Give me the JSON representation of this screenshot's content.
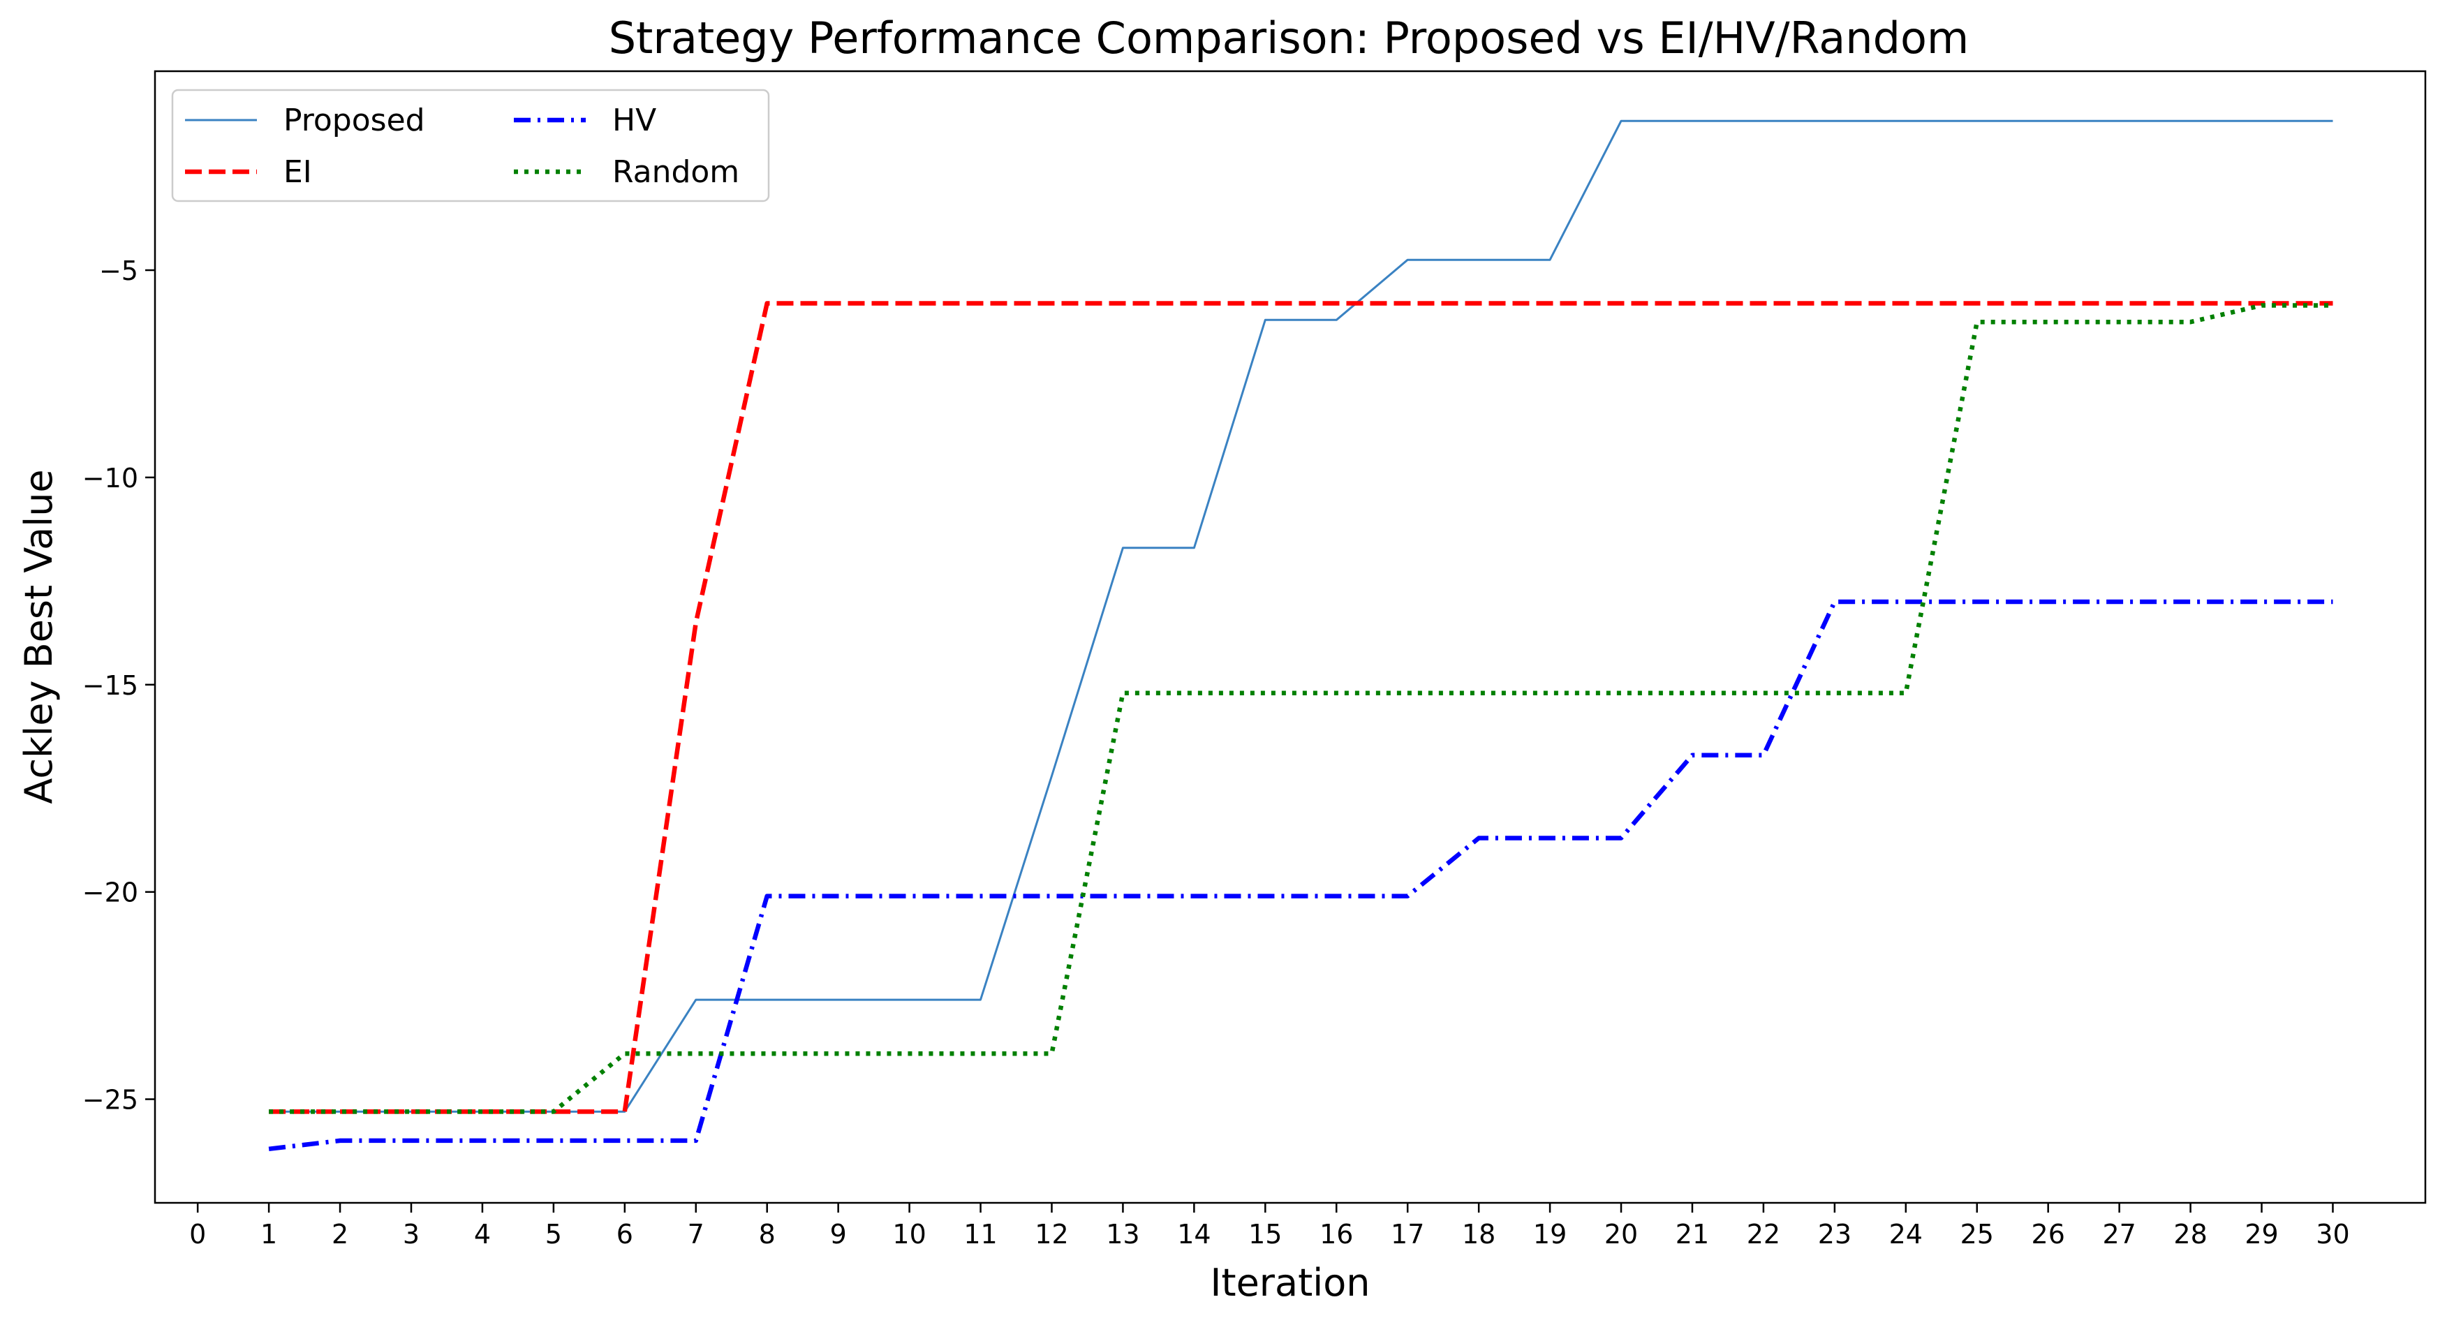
{
  "chart_data": {
    "type": "line",
    "title": "Strategy Performance Comparison: Proposed vs EI/HV/Random",
    "xlabel": "Iteration",
    "ylabel": "Ackley Best Value",
    "xlim": [
      -0.6,
      31.3
    ],
    "ylim": [
      -27.5,
      -0.2
    ],
    "x_ticks": [
      0,
      1,
      2,
      3,
      4,
      5,
      6,
      7,
      8,
      9,
      10,
      11,
      12,
      13,
      14,
      15,
      16,
      17,
      18,
      19,
      20,
      21,
      22,
      23,
      24,
      25,
      26,
      27,
      28,
      29,
      30
    ],
    "y_ticks": [
      -25,
      -20,
      -15,
      -10,
      -5
    ],
    "y_tick_labels": [
      "−25",
      "−20",
      "−15",
      "−10",
      "−5"
    ],
    "grid": false,
    "legend_placement": "top-left",
    "x": [
      1,
      2,
      3,
      4,
      5,
      6,
      7,
      8,
      9,
      10,
      11,
      12,
      13,
      14,
      15,
      16,
      17,
      18,
      19,
      20,
      21,
      22,
      23,
      24,
      25,
      26,
      27,
      28,
      29,
      30
    ],
    "series": [
      {
        "name": "Proposed",
        "color": "#3a82c2",
        "style": "solid",
        "values": [
          -25.3,
          -25.3,
          -25.3,
          -25.3,
          -25.3,
          -25.3,
          -22.6,
          -22.6,
          -22.6,
          -22.6,
          -22.6,
          -17.2,
          -11.7,
          -11.7,
          -6.2,
          -6.2,
          -4.75,
          -4.75,
          -4.75,
          -1.4,
          -1.4,
          -1.4,
          -1.4,
          -1.4,
          -1.4,
          -1.4,
          -1.4,
          -1.4,
          -1.4,
          -1.4
        ]
      },
      {
        "name": "EI",
        "color": "#ff0000",
        "style": "dashed",
        "values": [
          -25.3,
          -25.3,
          -25.3,
          -25.3,
          -25.3,
          -25.3,
          -13.5,
          -5.8,
          -5.8,
          -5.8,
          -5.8,
          -5.8,
          -5.8,
          -5.8,
          -5.8,
          -5.8,
          -5.8,
          -5.8,
          -5.8,
          -5.8,
          -5.8,
          -5.8,
          -5.8,
          -5.8,
          -5.8,
          -5.8,
          -5.8,
          -5.8,
          -5.8,
          -5.8
        ]
      },
      {
        "name": "HV",
        "color": "#0000ff",
        "style": "dashdot",
        "values": [
          -26.2,
          -26.0,
          -26.0,
          -26.0,
          -26.0,
          -26.0,
          -26.0,
          -20.1,
          -20.1,
          -20.1,
          -20.1,
          -20.1,
          -20.1,
          -20.1,
          -20.1,
          -20.1,
          -20.1,
          -18.7,
          -18.7,
          -18.7,
          -16.7,
          -16.7,
          -13.0,
          -13.0,
          -13.0,
          -13.0,
          -13.0,
          -13.0,
          -13.0,
          -13.0
        ]
      },
      {
        "name": "Random",
        "color": "#008000",
        "style": "dotted",
        "values": [
          -25.3,
          -25.3,
          -25.3,
          -25.3,
          -25.3,
          -23.9,
          -23.9,
          -23.9,
          -23.9,
          -23.9,
          -23.9,
          -23.9,
          -15.2,
          -15.2,
          -15.2,
          -15.2,
          -15.2,
          -15.2,
          -15.2,
          -15.2,
          -15.2,
          -15.2,
          -15.2,
          -15.2,
          -6.25,
          -6.25,
          -6.25,
          -6.25,
          -5.85,
          -5.85
        ]
      }
    ]
  }
}
